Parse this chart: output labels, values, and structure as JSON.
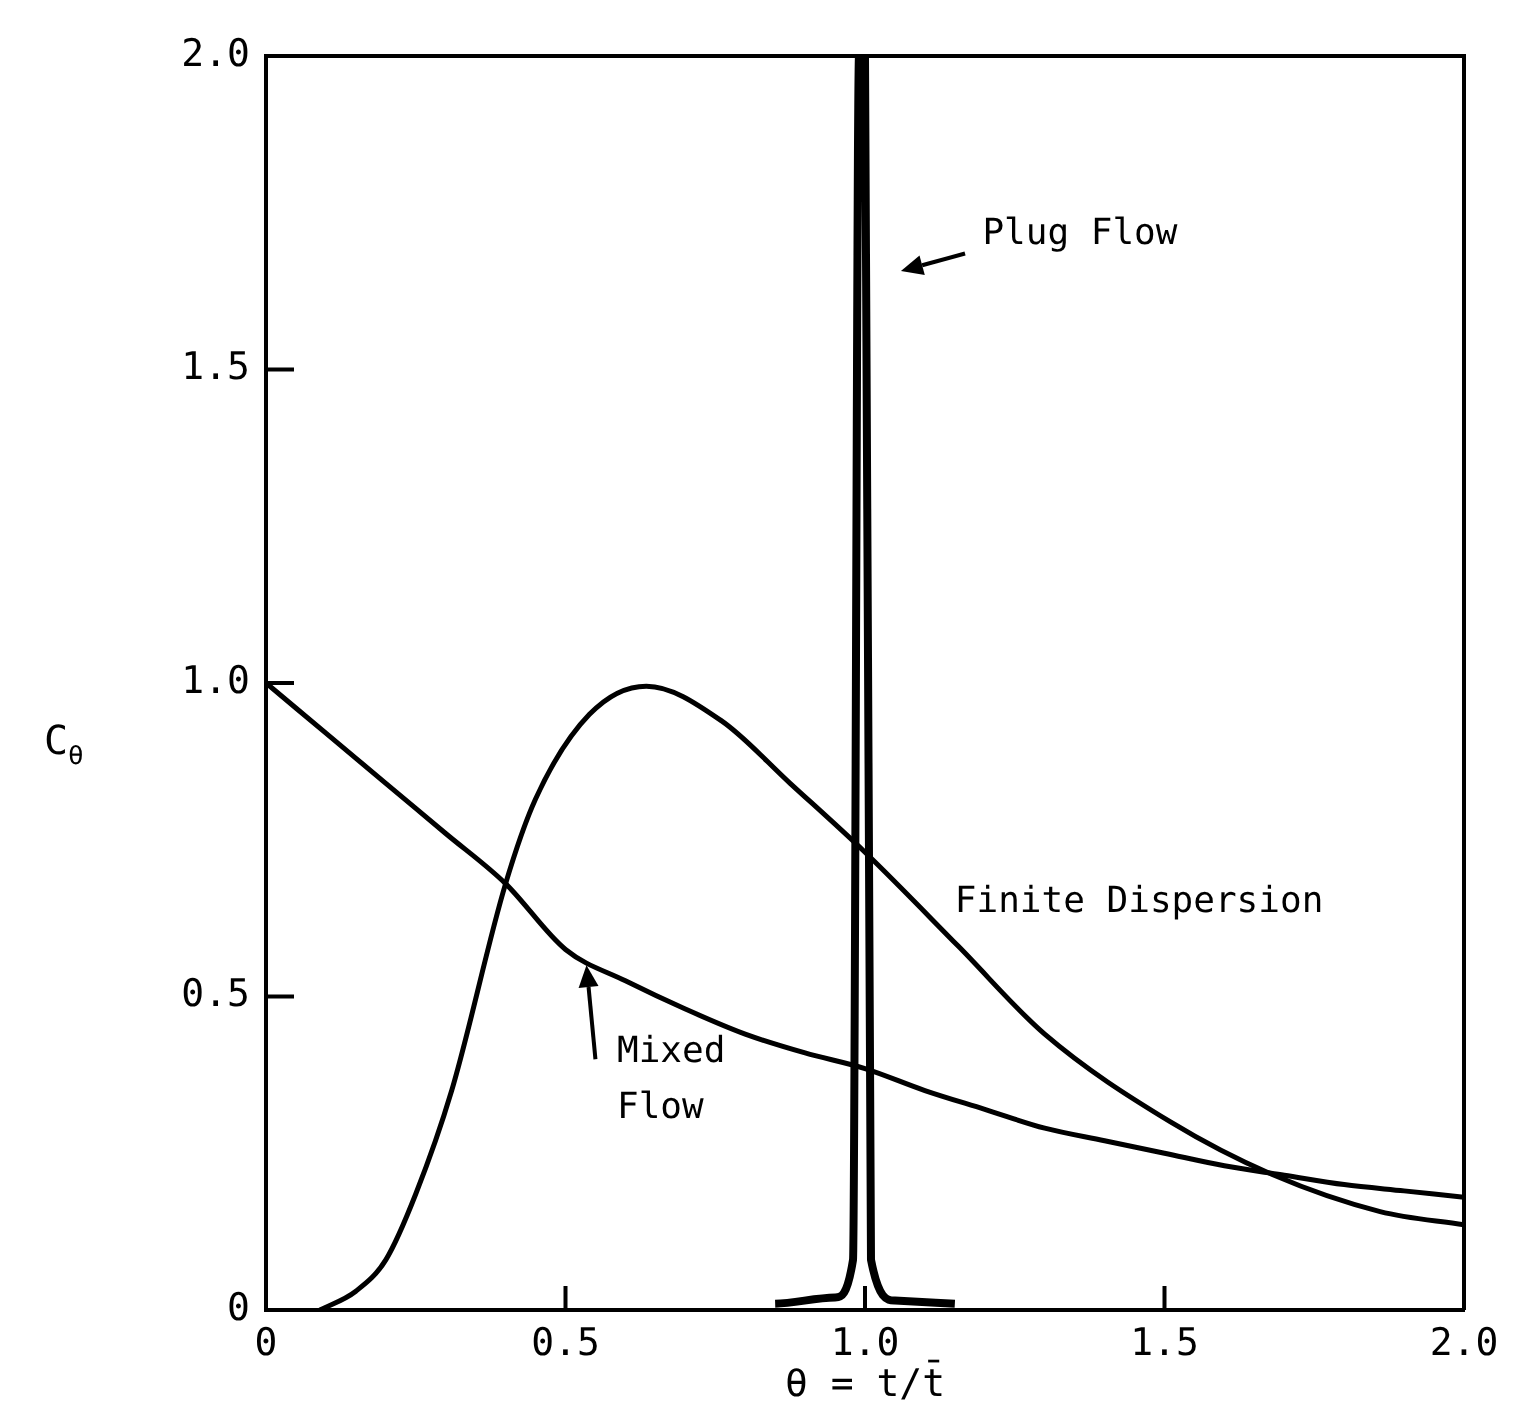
{
  "chart_data": {
    "type": "line",
    "xlabel": "θ = t/t̄",
    "ylabel": "C$_{θ}$",
    "xlim": [
      0,
      2
    ],
    "ylim": [
      0,
      2
    ],
    "xticks": [
      0,
      0.5,
      {
        "value": 1,
        "label": "1.0"
      },
      1.5,
      {
        "value": 2,
        "label": "2.0"
      }
    ],
    "yticks": [
      0,
      0.5,
      {
        "value": 1,
        "label": "1.0"
      },
      1.5,
      {
        "value": 2,
        "label": "2.0"
      }
    ],
    "grid": false,
    "legend": false,
    "marker": "none",
    "line_style": "solid",
    "series": [
      {
        "color": "#000000",
        "x": [
          0,
          0.1,
          0.2,
          0.3,
          0.4,
          0.5,
          0.6,
          0.7,
          0.8,
          0.9,
          1.0,
          1.1,
          1.2,
          1.3,
          1.4,
          1.5,
          1.6,
          1.7,
          1.8,
          1.9,
          2.0
        ],
        "values": [
          1.0,
          0.92,
          0.84,
          0.76,
          0.68,
          0.575,
          0.525,
          0.48,
          0.44,
          0.41,
          0.385,
          0.35,
          0.32,
          0.29,
          0.27,
          0.25,
          0.23,
          0.215,
          0.2,
          0.19,
          0.18
        ]
      },
      {
        "color": "#000000",
        "x": [
          0.09,
          0.15,
          0.2,
          0.25,
          0.31,
          0.4,
          0.45,
          0.54,
          0.635,
          0.76,
          0.875,
          1.0,
          1.156,
          1.3,
          1.51,
          1.68,
          1.86,
          2.0
        ],
        "values": [
          0,
          0.03,
          0.08,
          0.185,
          0.35,
          0.68,
          0.815,
          0.95,
          0.995,
          0.94,
          0.84,
          0.73,
          0.58,
          0.44,
          0.3,
          0.216,
          0.157,
          0.136
        ]
      },
      {
        "color": "#000000",
        "x": [
          0.85,
          0.95,
          0.98,
          0.99,
          1.0,
          1.01,
          1.05,
          1.15
        ],
        "values": [
          0.01,
          0.02,
          0.08,
          2.0,
          2.0,
          0.08,
          0.015,
          0.01
        ]
      }
    ],
    "annotations": [
      "Plug Flow",
      "Finite Dispersion",
      "Mixed Flow"
    ]
  }
}
